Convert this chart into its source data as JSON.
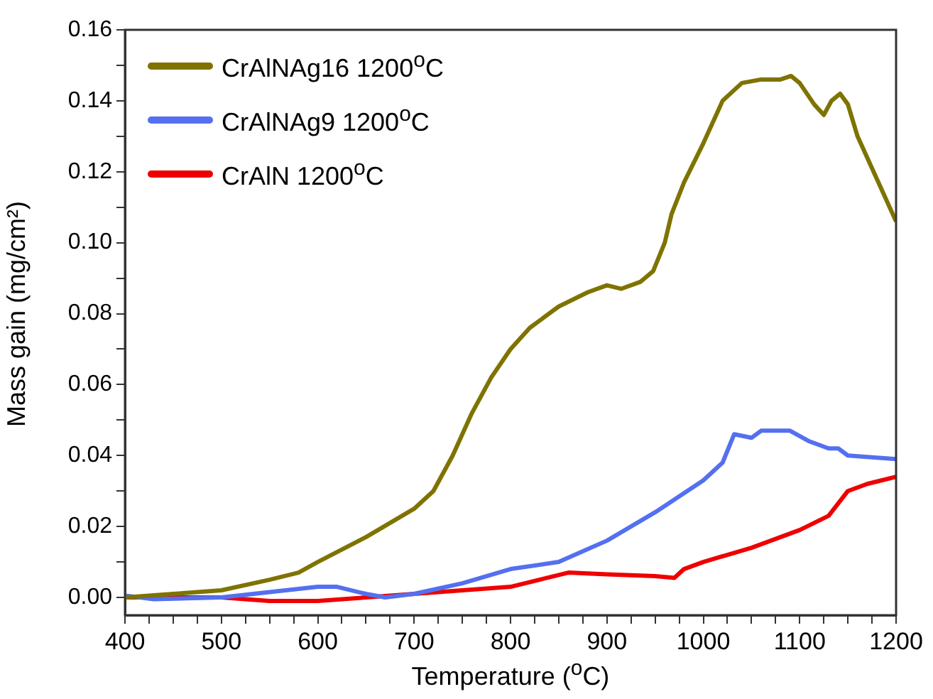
{
  "chart_data": {
    "type": "line",
    "xlabel": "Temperature ($^{o}$C)",
    "ylabel": "Mass gain (mg/cm²)",
    "xlim": [
      400,
      1200
    ],
    "ylim": [
      -0.005,
      0.16
    ],
    "xticks": [
      400,
      {
        "value": 425,
        "label": null
      },
      {
        "value": 450,
        "label": null
      },
      {
        "value": 475,
        "label": null
      },
      500,
      {
        "value": 525,
        "label": null
      },
      {
        "value": 550,
        "label": null
      },
      {
        "value": 575,
        "label": null
      },
      600,
      {
        "value": 625,
        "label": null
      },
      {
        "value": 650,
        "label": null
      },
      {
        "value": 675,
        "label": null
      },
      700,
      {
        "value": 725,
        "label": null
      },
      {
        "value": 750,
        "label": null
      },
      {
        "value": 775,
        "label": null
      },
      800,
      {
        "value": 825,
        "label": null
      },
      {
        "value": 850,
        "label": null
      },
      {
        "value": 875,
        "label": null
      },
      900,
      {
        "value": 925,
        "label": null
      },
      {
        "value": 950,
        "label": null
      },
      {
        "value": 975,
        "label": null
      },
      1000,
      {
        "value": 1025,
        "label": null
      },
      {
        "value": 1050,
        "label": null
      },
      {
        "value": 1075,
        "label": null
      },
      1100,
      {
        "value": 1125,
        "label": null
      },
      {
        "value": 1150,
        "label": null
      },
      {
        "value": 1175,
        "label": null
      },
      1200
    ],
    "yticks": [
      {
        "value": 0,
        "label": "0.00"
      },
      {
        "value": 0.01,
        "label": null
      },
      0.02,
      {
        "value": 0.03,
        "label": null
      },
      0.04,
      {
        "value": 0.05,
        "label": null
      },
      0.06,
      {
        "value": 0.07,
        "label": null
      },
      0.08,
      {
        "value": 0.09,
        "label": null
      },
      {
        "value": 0.1,
        "label": "0.10"
      },
      {
        "value": 0.11,
        "label": null
      },
      0.12,
      {
        "value": 0.13,
        "label": null
      },
      0.14,
      {
        "value": 0.15,
        "label": null
      },
      0.16
    ],
    "legend": "top left",
    "marker": "none",
    "line_style": "solid",
    "series": [
      {
        "name": "CrAlNAg16 1200$^{o}$C",
        "color": "#7f7300",
        "x": [
          400,
          450,
          500,
          550,
          580,
          600,
          650,
          700,
          720,
          740,
          760,
          780,
          800,
          820,
          850,
          880,
          900,
          915,
          935,
          948,
          960,
          967,
          980,
          1000,
          1020,
          1040,
          1060,
          1080,
          1091,
          1100,
          1115,
          1125,
          1133,
          1142,
          1150,
          1160,
          1180,
          1200
        ],
        "values": [
          0.0,
          0.001,
          0.002,
          0.005,
          0.007,
          0.01,
          0.017,
          0.025,
          0.03,
          0.04,
          0.052,
          0.062,
          0.07,
          0.076,
          0.082,
          0.086,
          0.088,
          0.087,
          0.089,
          0.092,
          0.1,
          0.108,
          0.117,
          0.128,
          0.14,
          0.145,
          0.146,
          0.146,
          0.147,
          0.145,
          0.139,
          0.136,
          0.14,
          0.142,
          0.139,
          0.13,
          0.118,
          0.106
        ]
      },
      {
        "name": "CrAlNAg9 1200$^{o}$C",
        "color": "#5470f0",
        "x": [
          400,
          430,
          500,
          550,
          600,
          620,
          650,
          670,
          700,
          750,
          800,
          850,
          900,
          950,
          1000,
          1020,
          1032,
          1050,
          1060,
          1090,
          1110,
          1130,
          1140,
          1150,
          1200
        ],
        "values": [
          0.0005,
          -0.0005,
          0.0,
          0.0015,
          0.003,
          0.003,
          0.001,
          0.0,
          0.001,
          0.004,
          0.008,
          0.01,
          0.016,
          0.024,
          0.033,
          0.038,
          0.046,
          0.045,
          0.047,
          0.047,
          0.044,
          0.042,
          0.042,
          0.04,
          0.039
        ]
      },
      {
        "name": "CrAlN 1200$^{o}$C",
        "color": "#ee0000",
        "x": [
          400,
          500,
          550,
          600,
          650,
          700,
          750,
          800,
          830,
          860,
          900,
          950,
          970,
          980,
          1000,
          1050,
          1080,
          1100,
          1130,
          1150,
          1170,
          1200
        ],
        "values": [
          0.0,
          0.0,
          -0.001,
          -0.001,
          0.0,
          0.001,
          0.002,
          0.003,
          0.005,
          0.007,
          0.0065,
          0.006,
          0.0055,
          0.008,
          0.01,
          0.014,
          0.017,
          0.019,
          0.023,
          0.03,
          0.032,
          0.034
        ]
      }
    ]
  }
}
